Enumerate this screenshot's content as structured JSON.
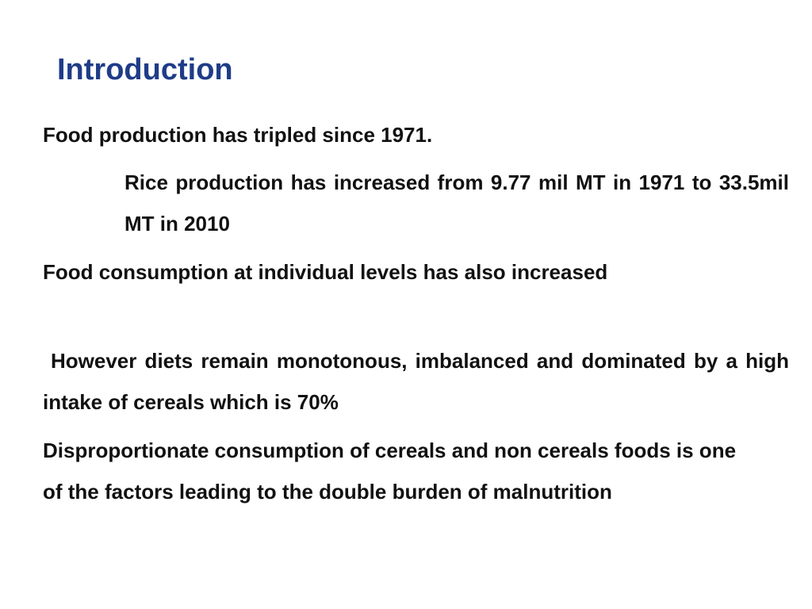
{
  "slide": {
    "title": "Introduction",
    "paragraphs": [
      "Food production has tripled since 1971.",
      "Rice production has increased from 9.77 mil MT in 1971 to 33.5mil MT in 2010",
      "Food consumption at individual levels has also increased",
      "However diets remain monotonous, imbalanced and dominated by a high intake of cereals which is 70%",
      "Disproportionate consumption of cereals and non cereals foods is one of the factors leading to the double burden of malnutrition"
    ]
  }
}
